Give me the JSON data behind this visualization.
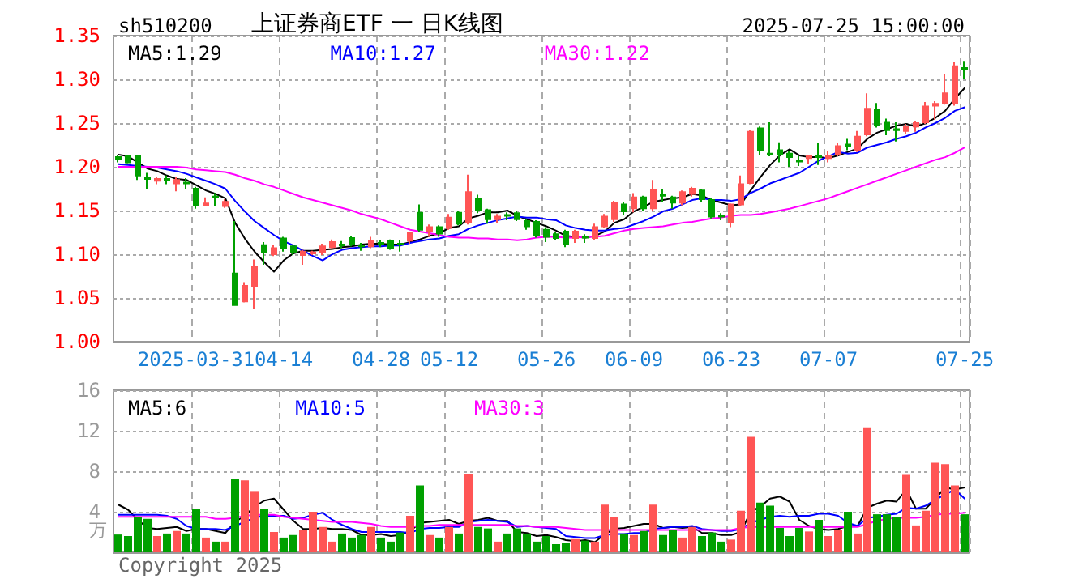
{
  "chart_data": [
    {
      "type": "candlestick",
      "title": "上证券商ETF 一 日K线图",
      "subtitle": "sh510200",
      "annotations": [
        "2025-07-25 15:00:00"
      ],
      "categories": [
        null,
        null,
        null,
        null,
        null,
        null,
        null,
        null,
        "2025-03-31",
        null,
        null,
        null,
        null,
        null,
        null,
        null,
        null,
        "04-14",
        null,
        null,
        null,
        null,
        null,
        null,
        null,
        null,
        null,
        "04-28",
        null,
        null,
        null,
        null,
        null,
        null,
        "05-12",
        null,
        null,
        null,
        null,
        null,
        null,
        null,
        null,
        null,
        "05-26",
        null,
        null,
        null,
        null,
        null,
        null,
        null,
        null,
        "06-09",
        null,
        null,
        null,
        null,
        null,
        null,
        null,
        null,
        null,
        "06-23",
        null,
        null,
        null,
        null,
        null,
        null,
        null,
        null,
        null,
        "07-07",
        null,
        null,
        null,
        null,
        null,
        null,
        null,
        null,
        null,
        null,
        null,
        null,
        null,
        "07-25"
      ],
      "ohlc": [
        [
          1.211,
          1.214,
          1.205,
          1.209
        ],
        [
          1.212,
          1.213,
          1.204,
          1.205
        ],
        [
          1.212,
          1.213,
          1.185,
          1.19
        ],
        [
          1.187,
          1.193,
          1.175,
          1.186
        ],
        [
          1.184,
          1.189,
          1.18,
          1.186
        ],
        [
          1.186,
          1.19,
          1.18,
          1.185
        ],
        [
          1.181,
          1.188,
          1.172,
          1.185
        ],
        [
          1.182,
          1.187,
          1.175,
          1.181
        ],
        [
          1.175,
          1.177,
          1.152,
          1.156
        ],
        [
          1.156,
          1.165,
          1.155,
          1.158
        ],
        [
          1.166,
          1.17,
          1.155,
          1.165
        ],
        [
          1.155,
          1.163,
          1.153,
          1.16
        ],
        [
          1.078,
          1.138,
          1.041,
          1.042
        ],
        [
          1.046,
          1.068,
          1.045,
          1.064
        ],
        [
          1.064,
          1.094,
          1.038,
          1.086
        ],
        [
          1.1105,
          1.114,
          1.088,
          1.102
        ],
        [
          1.1,
          1.111,
          1.098,
          1.107
        ],
        [
          1.118,
          1.12,
          1.103,
          1.107
        ],
        [
          1.109,
          1.111,
          1.099,
          1.102
        ],
        [
          1.099,
          1.105,
          1.088,
          1.103
        ],
        [
          1.101,
          1.104,
          1.099,
          1.102
        ],
        [
          1.102,
          1.112,
          1.099,
          1.109
        ],
        [
          1.108,
          1.117,
          1.106,
          1.114
        ],
        [
          1.111,
          1.115,
          1.107,
          1.11
        ],
        [
          1.1185,
          1.121,
          1.109,
          1.111
        ],
        [
          1.11,
          1.113,
          1.104,
          1.109
        ],
        [
          1.109,
          1.12,
          1.107,
          1.1155
        ],
        [
          1.113,
          1.116,
          1.108,
          1.112
        ],
        [
          1.1155,
          1.117,
          1.105,
          1.1075
        ],
        [
          1.112,
          1.116,
          1.103,
          1.111
        ],
        [
          1.1155,
          1.126,
          1.112,
          1.125
        ],
        [
          1.1475,
          1.157,
          1.125,
          1.128
        ],
        [
          1.126,
          1.134,
          1.12,
          1.131
        ],
        [
          1.131,
          1.133,
          1.12,
          1.1235
        ],
        [
          1.13,
          1.146,
          1.128,
          1.142
        ],
        [
          1.1475,
          1.15,
          1.133,
          1.135
        ],
        [
          1.137,
          1.191,
          1.134,
          1.171
        ],
        [
          1.163,
          1.168,
          1.147,
          1.1505
        ],
        [
          1.1505,
          1.152,
          1.135,
          1.14
        ],
        [
          1.14,
          1.146,
          1.136,
          1.143
        ],
        [
          1.145,
          1.148,
          1.139,
          1.144
        ],
        [
          1.147,
          1.149,
          1.138,
          1.14
        ],
        [
          1.138,
          1.14,
          1.128,
          1.132
        ],
        [
          1.137,
          1.139,
          1.119,
          1.122
        ],
        [
          1.128,
          1.131,
          1.114,
          1.12
        ],
        [
          1.123,
          1.125,
          1.116,
          1.1185
        ],
        [
          1.126,
          1.128,
          1.108,
          1.111
        ],
        [
          1.1185,
          1.128,
          1.113,
          1.126
        ],
        [
          1.12,
          1.123,
          1.113,
          1.119
        ],
        [
          1.1185,
          1.135,
          1.116,
          1.131
        ],
        [
          1.132,
          1.146,
          1.13,
          1.143
        ],
        [
          1.14,
          1.161,
          1.137,
          1.159
        ],
        [
          1.157,
          1.16,
          1.145,
          1.149
        ],
        [
          1.1525,
          1.17,
          1.148,
          1.165
        ],
        [
          1.165,
          1.167,
          1.149,
          1.1525
        ],
        [
          1.1525,
          1.185,
          1.149,
          1.174
        ],
        [
          1.168,
          1.175,
          1.16,
          1.167
        ],
        [
          1.165,
          1.167,
          1.152,
          1.159
        ],
        [
          1.159,
          1.173,
          1.156,
          1.171
        ],
        [
          1.169,
          1.177,
          1.166,
          1.175
        ],
        [
          1.173,
          1.175,
          1.16,
          1.163
        ],
        [
          1.162,
          1.164,
          1.141,
          1.143
        ],
        [
          1.144,
          1.147,
          1.139,
          1.143
        ],
        [
          1.136,
          1.158,
          1.131,
          1.157
        ],
        [
          1.157,
          1.19,
          1.155,
          1.18
        ],
        [
          1.1815,
          1.242,
          1.18,
          1.24
        ],
        [
          1.244,
          1.246,
          1.214,
          1.2185
        ],
        [
          1.215,
          1.251,
          1.212,
          1.214
        ],
        [
          1.219,
          1.228,
          1.205,
          1.214
        ],
        [
          1.215,
          1.218,
          1.2,
          1.211
        ],
        [
          1.207,
          1.212,
          1.201,
          1.206
        ],
        [
          1.21,
          1.214,
          1.203,
          1.212
        ],
        [
          1.212,
          1.227,
          1.202,
          1.211
        ],
        [
          1.21,
          1.218,
          1.205,
          1.212
        ],
        [
          1.214,
          1.227,
          1.212,
          1.2235
        ],
        [
          1.2255,
          1.232,
          1.219,
          1.224
        ],
        [
          1.2185,
          1.241,
          1.217,
          1.2345
        ],
        [
          1.237,
          1.284,
          1.235,
          1.2665
        ],
        [
          1.2655,
          1.273,
          1.245,
          1.248
        ],
        [
          1.2505,
          1.255,
          1.236,
          1.242
        ],
        [
          1.243,
          1.251,
          1.229,
          1.242
        ],
        [
          1.241,
          1.249,
          1.238,
          1.2455
        ],
        [
          1.246,
          1.252,
          1.24,
          1.25
        ],
        [
          1.251,
          1.274,
          1.249,
          1.269
        ],
        [
          1.27,
          1.275,
          1.254,
          1.272
        ],
        [
          1.273,
          1.306,
          1.271,
          1.284
        ],
        [
          1.273,
          1.32,
          1.27,
          1.315
        ],
        [
          1.313,
          1.321,
          1.301,
          1.312
        ]
      ],
      "colors": [
        "#00a000",
        "#00a000",
        "#00a000",
        "#00a000",
        "#ff5555",
        "#00a000",
        "#ff5555",
        "#00a000",
        "#00a000",
        "#ff5555",
        "#00a000",
        "#ff5555",
        "#00a000",
        "#ff5555",
        "#ff5555",
        "#00a000",
        "#ff5555",
        "#00a000",
        "#00a000",
        "#ff5555",
        "#ff5555",
        "#ff5555",
        "#ff5555",
        "#00a000",
        "#00a000",
        "#00a000",
        "#ff5555",
        "#00a000",
        "#00a000",
        "#00a000",
        "#ff5555",
        "#00a000",
        "#ff5555",
        "#00a000",
        "#ff5555",
        "#00a000",
        "#ff5555",
        "#00a000",
        "#00a000",
        "#ff5555",
        "#00a000",
        "#00a000",
        "#00a000",
        "#00a000",
        "#00a000",
        "#00a000",
        "#00a000",
        "#ff5555",
        "#00a000",
        "#ff5555",
        "#ff5555",
        "#ff5555",
        "#00a000",
        "#ff5555",
        "#00a000",
        "#ff5555",
        "#00a000",
        "#00a000",
        "#ff5555",
        "#ff5555",
        "#00a000",
        "#00a000",
        "#00a000",
        "#ff5555",
        "#ff5555",
        "#ff5555",
        "#00a000",
        "#00a000",
        "#00a000",
        "#00a000",
        "#00a000",
        "#ff5555",
        "#00a000",
        "#ff5555",
        "#ff5555",
        "#00a000",
        "#ff5555",
        "#ff5555",
        "#00a000",
        "#00a000",
        "#00a000",
        "#ff5555",
        "#ff5555",
        "#ff5555",
        "#ff5555",
        "#ff5555",
        "#ff5555",
        "#00a000"
      ],
      "series": [
        {
          "type": "line",
          "name": "MA5:1.29",
          "color": "#000000",
          "values": [
            1.214,
            1.212,
            1.205,
            1.198,
            1.195,
            1.19,
            1.186,
            1.185,
            1.179,
            1.173,
            1.169,
            1.164,
            1.136,
            1.118,
            1.103,
            1.091,
            1.08,
            1.093,
            1.101,
            1.104,
            1.104,
            1.105,
            1.106,
            1.108,
            1.109,
            1.111,
            1.112,
            1.112,
            1.111,
            1.111,
            1.114,
            1.117,
            1.121,
            1.124,
            1.13,
            1.132,
            1.141,
            1.144,
            1.148,
            1.148,
            1.15,
            1.144,
            1.14,
            1.136,
            1.132,
            1.127,
            1.121,
            1.12,
            1.119,
            1.121,
            1.126,
            1.136,
            1.14,
            1.149,
            1.154,
            1.16,
            1.162,
            1.164,
            1.165,
            1.169,
            1.167,
            1.162,
            1.159,
            1.156,
            1.157,
            1.173,
            1.188,
            1.202,
            1.213,
            1.22,
            1.213,
            1.211,
            1.211,
            1.21,
            1.213,
            1.217,
            1.221,
            1.232,
            1.239,
            1.243,
            1.247,
            1.249,
            1.246,
            1.25,
            1.256,
            1.264,
            1.278,
            1.29
          ]
        },
        {
          "type": "line",
          "name": "MA10:1.27",
          "color": "#0000ff",
          "values": [
            1.203,
            1.202,
            1.201,
            1.2,
            1.199,
            1.197,
            1.195,
            1.192,
            1.188,
            1.184,
            1.18,
            1.175,
            1.161,
            1.149,
            1.138,
            1.13,
            1.122,
            1.115,
            1.11,
            1.104,
            1.098,
            1.093,
            1.1,
            1.105,
            1.107,
            1.108,
            1.109,
            1.109,
            1.11,
            1.11,
            1.113,
            1.115,
            1.117,
            1.118,
            1.121,
            1.123,
            1.129,
            1.133,
            1.136,
            1.139,
            1.141,
            1.143,
            1.142,
            1.142,
            1.14,
            1.139,
            1.133,
            1.13,
            1.128,
            1.127,
            1.127,
            1.129,
            1.13,
            1.134,
            1.138,
            1.143,
            1.149,
            1.152,
            1.157,
            1.162,
            1.164,
            1.162,
            1.162,
            1.161,
            1.163,
            1.17,
            1.175,
            1.181,
            1.185,
            1.189,
            1.193,
            1.2,
            1.207,
            1.212,
            1.217,
            1.215,
            1.216,
            1.222,
            1.225,
            1.228,
            1.232,
            1.235,
            1.239,
            1.245,
            1.25,
            1.256,
            1.264,
            1.268
          ]
        },
        {
          "type": "line",
          "name": "MA30:1.22",
          "color": "#ff00ff",
          "values": [
            1.2,
            1.2,
            1.2,
            1.2,
            1.2,
            1.2,
            1.2,
            1.199,
            1.197,
            1.196,
            1.195,
            1.194,
            1.191,
            1.187,
            1.184,
            1.18,
            1.177,
            1.173,
            1.169,
            1.165,
            1.162,
            1.159,
            1.156,
            1.153,
            1.15,
            1.146,
            1.143,
            1.14,
            1.136,
            1.132,
            1.128,
            1.126,
            1.124,
            1.122,
            1.12,
            1.119,
            1.119,
            1.118,
            1.118,
            1.117,
            1.117,
            1.116,
            1.117,
            1.119,
            1.12,
            1.12,
            1.119,
            1.119,
            1.12,
            1.12,
            1.121,
            1.124,
            1.127,
            1.129,
            1.13,
            1.131,
            1.132,
            1.134,
            1.136,
            1.137,
            1.139,
            1.141,
            1.142,
            1.144,
            1.145,
            1.145,
            1.146,
            1.148,
            1.15,
            1.152,
            1.155,
            1.158,
            1.161,
            1.164,
            1.168,
            1.172,
            1.176,
            1.18,
            1.184,
            1.188,
            1.192,
            1.196,
            1.2,
            1.204,
            1.208,
            1.211,
            1.216,
            1.222
          ]
        }
      ],
      "ylim": [
        1.0,
        1.35
      ],
      "yticks": [
        {
          "value": 1.0,
          "label": "1.00"
        },
        1.05,
        {
          "value": 1.1,
          "label": "1.10"
        },
        1.15,
        {
          "value": 1.2,
          "label": "1.20"
        },
        1.25,
        {
          "value": 1.3,
          "label": "1.30"
        },
        1.35
      ],
      "grid": true,
      "legend": "top left"
    },
    {
      "type": "bar",
      "ylabel": "万",
      "annotations": [
        "Copyright 2025"
      ],
      "categories": [
        null,
        null,
        null,
        null,
        null,
        null,
        null,
        null,
        null,
        null,
        null,
        null,
        null,
        null,
        null,
        null,
        null,
        null,
        null,
        null,
        null,
        null,
        null,
        null,
        null,
        null,
        null,
        null,
        null,
        null,
        null,
        null,
        null,
        null,
        null,
        null,
        null,
        null,
        null,
        null,
        null,
        null,
        null,
        null,
        null,
        null,
        null,
        null,
        null,
        null,
        null,
        null,
        null,
        null,
        null,
        null,
        null,
        null,
        null,
        null,
        null,
        null,
        null,
        null,
        null,
        null,
        null,
        null,
        null,
        null,
        null,
        null,
        null,
        null,
        null,
        null,
        null,
        null,
        null,
        null,
        null,
        null,
        null,
        null,
        null,
        null,
        null,
        null
      ],
      "series": [
        {
          "type": "bar",
          "values": [
            1.75,
            1.6,
            3.45,
            3.3,
            1.6,
            1.85,
            2.1,
            1.85,
            4.25,
            1.45,
            1.05,
            1.05,
            7.25,
            7.1,
            6.05,
            4.25,
            2.0,
            1.45,
            1.7,
            2.2,
            4.0,
            2.5,
            1.05,
            1.85,
            1.45,
            1.7,
            2.5,
            1.45,
            1.05,
            1.95,
            3.6,
            6.6,
            1.7,
            1.45,
            2.5,
            1.85,
            7.75,
            2.5,
            2.35,
            1.05,
            1.85,
            2.35,
            1.85,
            1.05,
            1.6,
            0.8,
            0.9,
            1.3,
            1.15,
            1.05,
            4.7,
            3.45,
            1.85,
            1.7,
            2.1,
            4.7,
            1.7,
            2.2,
            1.45,
            2.5,
            1.6,
            1.95,
            1.05,
            1.25,
            4.1,
            11.4,
            4.9,
            4.6,
            2.4,
            1.6,
            2.4,
            2.05,
            3.2,
            1.6,
            2.2,
            4.0,
            1.85,
            12.35,
            3.75,
            3.75,
            3.45,
            7.65,
            2.65,
            4.1,
            8.85,
            8.7,
            6.6,
            3.75
          ],
          "colors": [
            "#00a000",
            "#00a000",
            "#00a000",
            "#00a000",
            "#ff5555",
            "#00a000",
            "#ff5555",
            "#00a000",
            "#00a000",
            "#ff5555",
            "#00a000",
            "#ff5555",
            "#00a000",
            "#ff5555",
            "#ff5555",
            "#00a000",
            "#ff5555",
            "#00a000",
            "#00a000",
            "#ff5555",
            "#ff5555",
            "#ff5555",
            "#ff5555",
            "#00a000",
            "#00a000",
            "#00a000",
            "#ff5555",
            "#00a000",
            "#00a000",
            "#00a000",
            "#ff5555",
            "#00a000",
            "#ff5555",
            "#00a000",
            "#ff5555",
            "#00a000",
            "#ff5555",
            "#00a000",
            "#00a000",
            "#ff5555",
            "#00a000",
            "#00a000",
            "#00a000",
            "#00a000",
            "#00a000",
            "#00a000",
            "#00a000",
            "#ff5555",
            "#00a000",
            "#ff5555",
            "#ff5555",
            "#ff5555",
            "#00a000",
            "#ff5555",
            "#00a000",
            "#ff5555",
            "#00a000",
            "#00a000",
            "#ff5555",
            "#ff5555",
            "#00a000",
            "#00a000",
            "#00a000",
            "#ff5555",
            "#ff5555",
            "#ff5555",
            "#00a000",
            "#00a000",
            "#00a000",
            "#00a000",
            "#00a000",
            "#ff5555",
            "#00a000",
            "#ff5555",
            "#ff5555",
            "#00a000",
            "#ff5555",
            "#ff5555",
            "#00a000",
            "#00a000",
            "#00a000",
            "#ff5555",
            "#ff5555",
            "#ff5555",
            "#ff5555",
            "#ff5555",
            "#ff5555",
            "#00a000"
          ]
        },
        {
          "type": "line",
          "name": "MA5:6",
          "color": "#000000",
          "values": [
            4.7,
            4.2,
            3.2,
            2.4,
            2.3,
            2.4,
            2.5,
            2.1,
            2.3,
            2.3,
            2.1,
            1.9,
            3.0,
            3.6,
            4.5,
            5.1,
            5.3,
            4.2,
            3.1,
            2.3,
            2.3,
            2.4,
            2.3,
            2.3,
            2.2,
            1.7,
            1.7,
            1.8,
            1.6,
            1.7,
            2.1,
            2.9,
            3.0,
            3.1,
            3.2,
            2.8,
            3.1,
            3.2,
            3.4,
            3.1,
            3.1,
            2.0,
            1.9,
            1.6,
            1.7,
            1.5,
            1.2,
            1.1,
            1.2,
            1.0,
            1.8,
            2.3,
            2.4,
            2.6,
            2.8,
            2.8,
            2.4,
            2.5,
            2.4,
            2.5,
            1.9,
            1.9,
            1.7,
            1.7,
            2.0,
            4.0,
            4.5,
            5.3,
            5.5,
            5.0,
            3.2,
            2.6,
            2.3,
            2.2,
            2.3,
            2.6,
            2.6,
            4.4,
            4.8,
            5.1,
            5.0,
            6.2,
            4.3,
            4.3,
            5.3,
            6.4,
            6.2,
            6.4
          ]
        },
        {
          "type": "line",
          "name": "MA10:5",
          "color": "#0000ff",
          "values": [
            3.7,
            3.7,
            3.7,
            3.7,
            3.7,
            3.6,
            3.3,
            2.6,
            2.3,
            2.3,
            2.3,
            2.2,
            2.6,
            3.0,
            3.4,
            3.6,
            3.6,
            3.6,
            3.3,
            3.4,
            3.7,
            3.9,
            3.2,
            2.7,
            2.3,
            2.0,
            2.0,
            2.0,
            2.0,
            2.0,
            1.9,
            2.3,
            2.4,
            2.4,
            2.5,
            2.5,
            3.0,
            3.1,
            3.2,
            3.1,
            3.0,
            2.5,
            2.6,
            2.5,
            2.4,
            2.3,
            1.6,
            1.5,
            1.4,
            1.4,
            1.7,
            1.8,
            1.8,
            1.9,
            1.9,
            2.3,
            2.4,
            2.5,
            2.5,
            2.6,
            2.3,
            2.2,
            2.1,
            2.1,
            2.3,
            2.9,
            3.2,
            3.5,
            3.6,
            3.5,
            3.6,
            3.6,
            3.8,
            3.8,
            3.6,
            2.9,
            2.6,
            3.4,
            3.5,
            3.7,
            3.8,
            4.4,
            4.3,
            4.6,
            5.2,
            5.7,
            6.2,
            5.3
          ]
        },
        {
          "type": "line",
          "name": "MA30:3",
          "color": "#ff00ff",
          "values": [
            3.5,
            3.5,
            3.5,
            3.5,
            3.5,
            3.5,
            3.5,
            3.5,
            3.5,
            3.5,
            3.3,
            3.3,
            3.4,
            3.6,
            3.7,
            3.7,
            3.7,
            3.5,
            3.4,
            3.3,
            3.2,
            3.1,
            3.0,
            3.0,
            3.0,
            2.9,
            2.8,
            2.6,
            2.5,
            2.5,
            2.5,
            2.6,
            2.6,
            2.7,
            2.7,
            2.7,
            2.7,
            2.7,
            2.7,
            2.7,
            2.7,
            2.6,
            2.6,
            2.5,
            2.5,
            2.5,
            2.4,
            2.3,
            2.2,
            2.2,
            2.2,
            2.2,
            2.2,
            2.2,
            2.2,
            2.2,
            2.2,
            2.2,
            2.2,
            2.2,
            2.2,
            2.2,
            2.2,
            2.2,
            2.4,
            2.5,
            2.5,
            2.5,
            2.5,
            2.5,
            2.5,
            2.5,
            2.5,
            2.5,
            2.5,
            2.5,
            2.5,
            2.8,
            3.1,
            3.3,
            3.4,
            3.4,
            3.4,
            3.5,
            3.7,
            3.8,
            3.8,
            3.9
          ]
        }
      ],
      "ylim": [
        0,
        16
      ],
      "yticks": [
        {
          "value": 0,
          "label": null
        },
        4,
        8,
        12,
        16
      ],
      "grid": true,
      "legend": "top left",
      "tick_labels": "y"
    }
  ]
}
